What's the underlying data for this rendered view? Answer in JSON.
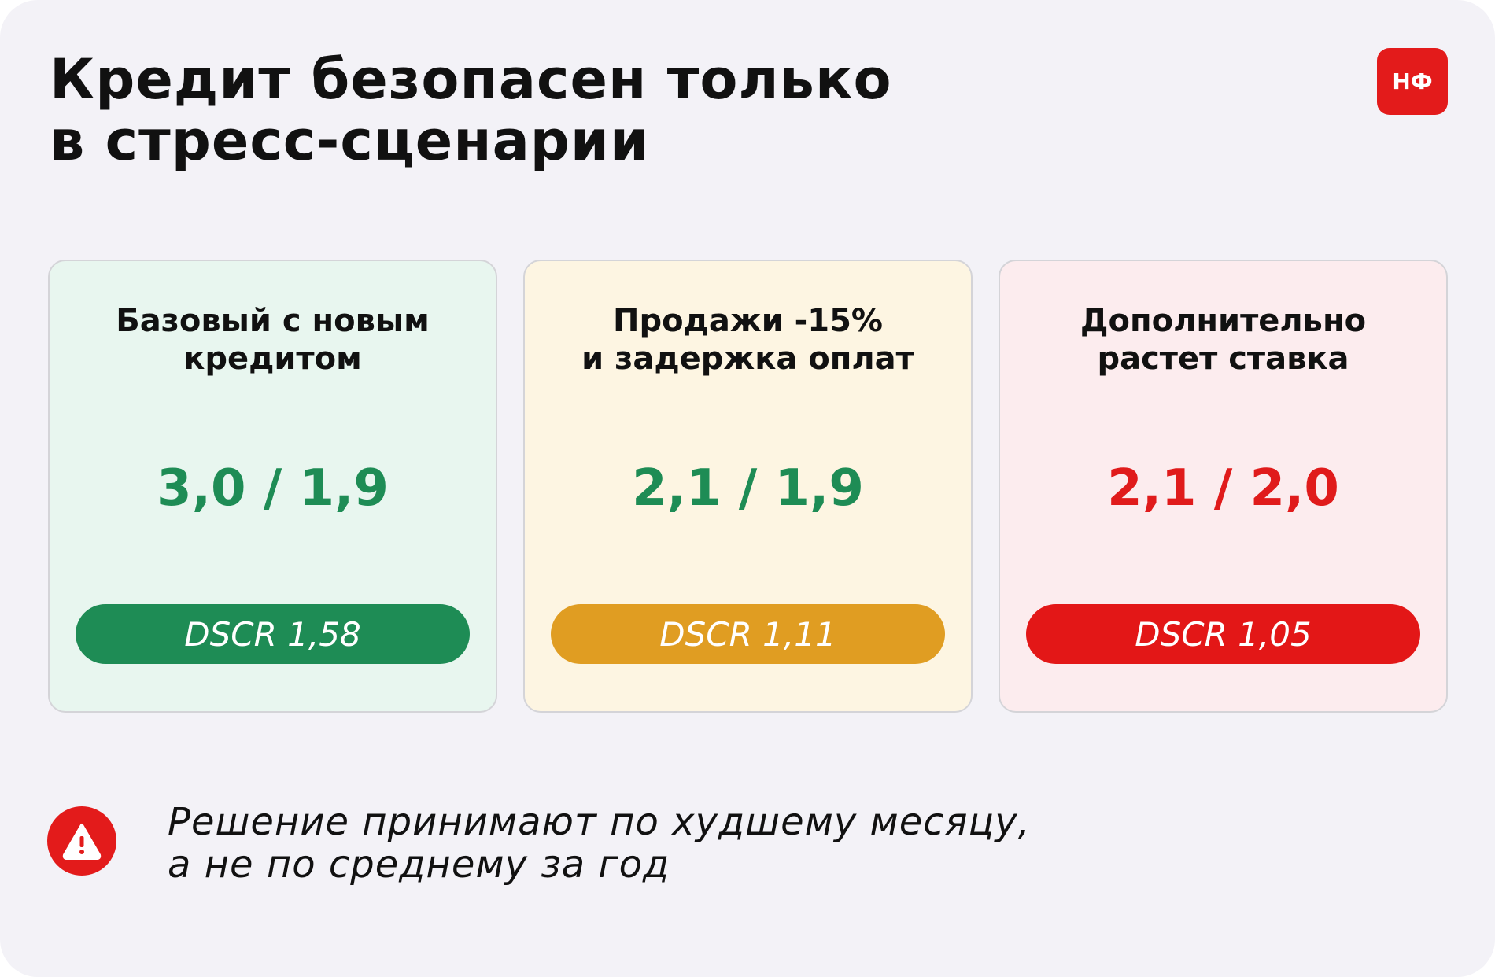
{
  "header": {
    "title": [
      "Кредит безопасен только",
      "в стресс-сценарии"
    ],
    "logo": "НФ"
  },
  "cards": [
    {
      "title": [
        "Базовый с новым",
        "кредитом"
      ],
      "value": "3,0 / 1,9",
      "badge": "DSCR 1,58"
    },
    {
      "title": [
        "Продажи -15%",
        "и задержка оплат"
      ],
      "value": "2,1 / 1,9",
      "badge": "DSCR 1,11"
    },
    {
      "title": [
        "Дополнительно",
        "растет ставка"
      ],
      "value": "2,1 / 2,0",
      "badge": "DSCR 1,05"
    }
  ],
  "note": {
    "lines": [
      "Решение принимают по худшему месяцу,",
      "а не по среднему за год"
    ]
  }
}
